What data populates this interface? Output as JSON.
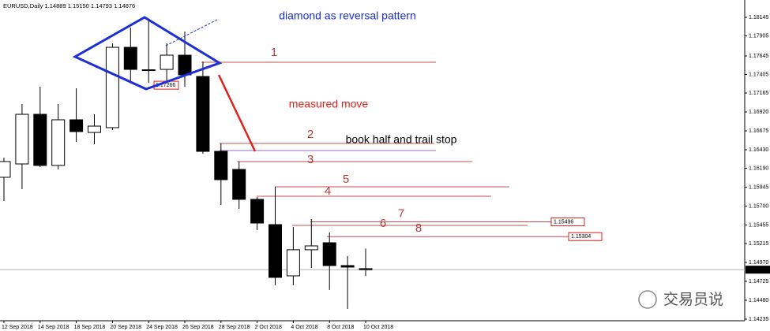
{
  "chart_data": {
    "type": "candlestick",
    "title": "EURUSD,Daily  1.14889 1.15150 1.14793 1.14876",
    "categories": [
      "12 Sep 2018",
      null,
      "14 Sep 2018",
      null,
      "18 Sep 2018",
      null,
      "20 Sep 2018",
      null,
      "24 Sep 2018",
      null,
      "26 Sep 2018",
      null,
      "28 Sep 2018",
      null,
      "2 Oct 2018",
      null,
      "4 Oct 2018",
      null,
      "8 Oct 2018",
      null,
      "10 Oct 2018"
    ],
    "open": [
      1.16073,
      1.16246,
      1.16889,
      1.16226,
      1.16818,
      1.16654,
      1.16716,
      1.17757,
      1.17466,
      1.17471,
      1.17655,
      1.17379,
      1.16409,
      1.16175,
      1.15787,
      1.1546,
      1.14796,
      1.15134,
      1.15225,
      1.14929,
      1.14889
    ],
    "high": [
      1.16328,
      1.17022,
      1.17247,
      1.17022,
      1.17226,
      1.16889,
      1.17808,
      1.18012,
      1.1813,
      1.17808,
      1.17961,
      1.17573,
      1.16512,
      1.16277,
      1.15817,
      1.1595,
      1.15429,
      1.15531,
      1.15358,
      1.15052,
      1.1515
    ],
    "low": [
      1.15766,
      1.15919,
      1.16205,
      1.16175,
      1.16532,
      1.16501,
      1.16685,
      1.17298,
      1.17298,
      1.17267,
      1.17247,
      1.16379,
      1.15715,
      1.15664,
      1.15389,
      1.14674,
      1.14674,
      1.14898,
      1.14613,
      1.14368,
      1.14793
    ],
    "close": [
      1.16277,
      1.16889,
      1.16226,
      1.16818,
      1.16665,
      1.16736,
      1.17757,
      1.17471,
      1.17461,
      1.17655,
      1.174,
      1.16409,
      1.16042,
      1.15787,
      1.1548,
      1.14776,
      1.15134,
      1.15184,
      1.14929,
      1.14909,
      1.14876
    ],
    "up_color": "#ffffff",
    "down_color": "#000000",
    "ylim": [
      1.14214,
      1.1837
    ],
    "yticks": [
      1.18145,
      1.17905,
      1.17645,
      1.17405,
      1.17165,
      {
        "value": 1.1692,
        "label": "1.16920"
      },
      1.16675,
      {
        "value": 1.1643,
        "label": "1.16430"
      },
      {
        "value": 1.1619,
        "label": "1.16190"
      },
      1.15945,
      {
        "value": 1.157,
        "label": "1.15700"
      },
      1.15455,
      1.15215,
      {
        "value": 1.1497,
        "label": "1.14970"
      },
      1.14725,
      {
        "value": 1.1448,
        "label": "1.14480"
      },
      1.14235
    ],
    "last_price": 1.14876,
    "marker_price": 1.17266,
    "levels": [
      {
        "label": "1",
        "value": 1.17563
      },
      {
        "label": "2",
        "value": 1.16512
      },
      {
        "label": "3",
        "value": 1.16277
      },
      {
        "label": "4",
        "value": 1.15828
      },
      {
        "label": "5",
        "value": 1.1595
      },
      {
        "label": "6",
        "value": 1.1545
      },
      {
        "label": "7",
        "value": 1.15496,
        "price_label": "1.15496"
      },
      {
        "label": "8",
        "value": 1.15304,
        "price_label": "1.15304"
      }
    ],
    "stop_level": 1.1642,
    "annotations": {
      "diamond": "diamond as reversal pattern",
      "measured": "measured move",
      "book": "book half and trail stop"
    },
    "watermark": "交易员说"
  }
}
